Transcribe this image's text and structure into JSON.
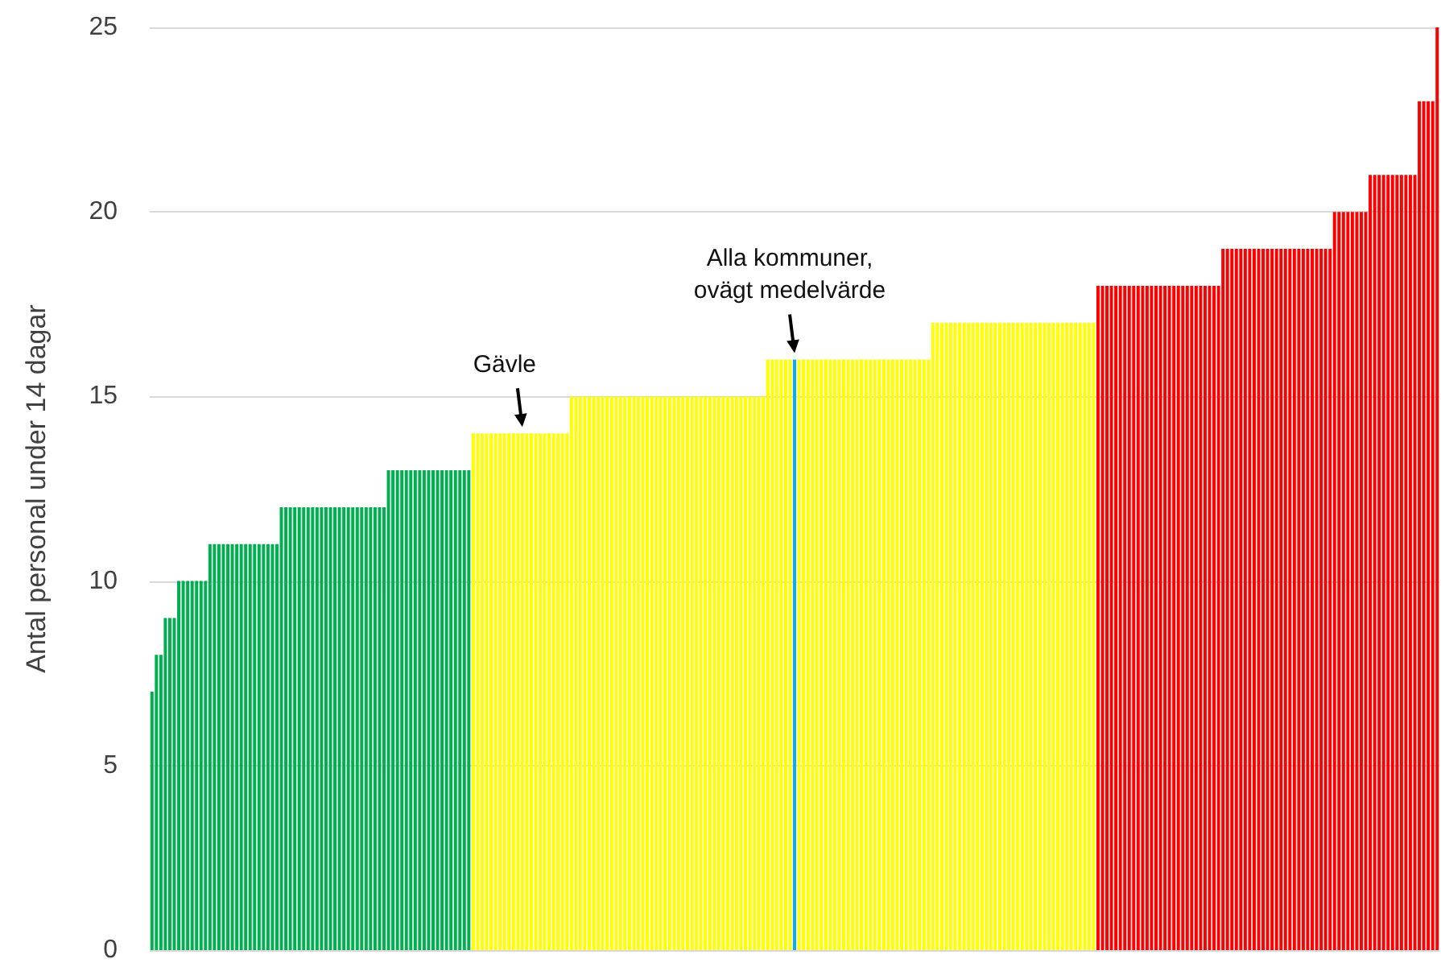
{
  "chart_data": {
    "type": "bar",
    "ylabel": "Antal personal under 14 dagar",
    "categories": [
      null,
      null,
      null,
      null,
      null,
      null,
      null,
      null,
      null,
      null,
      null,
      null,
      null,
      null,
      null,
      null,
      null,
      null,
      null,
      null,
      null,
      null,
      null,
      null,
      null,
      null,
      null,
      null,
      null,
      null,
      null,
      null,
      null,
      null,
      null,
      null,
      null,
      null,
      null,
      null,
      null,
      null,
      null,
      null,
      null,
      null,
      null,
      null,
      null,
      null,
      null,
      null,
      null,
      null,
      null,
      null,
      null,
      null,
      null,
      null,
      null,
      null,
      null,
      null,
      null,
      null,
      null,
      null,
      null,
      null,
      null,
      null,
      null,
      null,
      null,
      null,
      null,
      null,
      null,
      null,
      null,
      null,
      null,
      null,
      null,
      null,
      null,
      null,
      null,
      null,
      null,
      null,
      null,
      null,
      null,
      null,
      null,
      null,
      null,
      null,
      null,
      null,
      null,
      null,
      null,
      null,
      null,
      null,
      null,
      null,
      null,
      null,
      null,
      null,
      null,
      null,
      null,
      null,
      null,
      null,
      null,
      null,
      null,
      null,
      null,
      null,
      null,
      null,
      null,
      null,
      null,
      null,
      null,
      null,
      null,
      null,
      null,
      null,
      null,
      null,
      null,
      null,
      null,
      null,
      null,
      null,
      null,
      null,
      null,
      null,
      null,
      null,
      null,
      null,
      null,
      null,
      null,
      null,
      null,
      null,
      null,
      null,
      null,
      null,
      null,
      null,
      null,
      null,
      null,
      null,
      null,
      null,
      null,
      null,
      null,
      null,
      null,
      null,
      null,
      null,
      null,
      null,
      null,
      null,
      null,
      null,
      null,
      null,
      null,
      null,
      null,
      null,
      null,
      null,
      null,
      null,
      null,
      null,
      null,
      null,
      null,
      null,
      null,
      null,
      null,
      null,
      null,
      null,
      null,
      null,
      null,
      null,
      null,
      null,
      null,
      null,
      null,
      null,
      null,
      null,
      null,
      null,
      null,
      null,
      null,
      null,
      null,
      null,
      null,
      null,
      null,
      null,
      null,
      null,
      null,
      null,
      null,
      null,
      null,
      null,
      null,
      null,
      null,
      null,
      null,
      null,
      null,
      null,
      null,
      null,
      null,
      null,
      null,
      null,
      null,
      null,
      null,
      null,
      null,
      null,
      null,
      null,
      null,
      null,
      null,
      null,
      null,
      null,
      null,
      null,
      null,
      null,
      null,
      null,
      null,
      null,
      null,
      null,
      null,
      null,
      null,
      null,
      null,
      null,
      null,
      null,
      null,
      null,
      null
    ],
    "values": [
      7,
      8,
      8,
      9,
      9,
      9,
      10,
      10,
      10,
      10,
      10,
      10,
      10,
      11,
      11,
      11,
      11,
      11,
      11,
      11,
      11,
      11,
      11,
      11,
      11,
      11,
      11,
      11,
      11,
      12,
      12,
      12,
      12,
      12,
      12,
      12,
      12,
      12,
      12,
      12,
      12,
      12,
      12,
      12,
      12,
      12,
      12,
      12,
      12,
      12,
      12,
      12,
      12,
      13,
      13,
      13,
      13,
      13,
      13,
      13,
      13,
      13,
      13,
      13,
      13,
      13,
      13,
      13,
      13,
      13,
      13,
      13,
      14,
      14,
      14,
      14,
      14,
      14,
      14,
      14,
      14,
      14,
      14,
      14,
      14,
      14,
      14,
      14,
      14,
      14,
      14,
      14,
      14,
      14,
      15,
      15,
      15,
      15,
      15,
      15,
      15,
      15,
      15,
      15,
      15,
      15,
      15,
      15,
      15,
      15,
      15,
      15,
      15,
      15,
      15,
      15,
      15,
      15,
      15,
      15,
      15,
      15,
      15,
      15,
      15,
      15,
      15,
      15,
      15,
      15,
      15,
      15,
      15,
      15,
      15,
      15,
      15,
      15,
      16,
      16,
      16,
      16,
      16,
      16,
      16,
      16,
      16,
      16,
      16,
      16,
      16,
      16,
      16,
      16,
      16,
      16,
      16,
      16,
      16,
      16,
      16,
      16,
      16,
      16,
      16,
      16,
      16,
      16,
      16,
      16,
      16,
      16,
      16,
      16,
      16,
      17,
      17,
      17,
      17,
      17,
      17,
      17,
      17,
      17,
      17,
      17,
      17,
      17,
      17,
      17,
      17,
      17,
      17,
      17,
      17,
      17,
      17,
      17,
      17,
      17,
      17,
      17,
      17,
      17,
      17,
      17,
      17,
      17,
      17,
      17,
      17,
      17,
      18,
      18,
      18,
      18,
      18,
      18,
      18,
      18,
      18,
      18,
      18,
      18,
      18,
      18,
      18,
      18,
      18,
      18,
      18,
      18,
      18,
      18,
      18,
      18,
      18,
      18,
      18,
      18,
      19,
      19,
      19,
      19,
      19,
      19,
      19,
      19,
      19,
      19,
      19,
      19,
      19,
      19,
      19,
      19,
      19,
      19,
      19,
      19,
      19,
      19,
      19,
      19,
      19,
      20,
      20,
      20,
      20,
      20,
      20,
      20,
      20,
      21,
      21,
      21,
      21,
      21,
      21,
      21,
      21,
      21,
      21,
      21,
      23,
      23,
      23,
      23,
      25
    ],
    "colors": [
      "#00b050",
      "#00b050",
      "#00b050",
      "#00b050",
      "#00b050",
      "#00b050",
      "#00b050",
      "#00b050",
      "#00b050",
      "#00b050",
      "#00b050",
      "#00b050",
      "#00b050",
      "#00b050",
      "#00b050",
      "#00b050",
      "#00b050",
      "#00b050",
      "#00b050",
      "#00b050",
      "#00b050",
      "#00b050",
      "#00b050",
      "#00b050",
      "#00b050",
      "#00b050",
      "#00b050",
      "#00b050",
      "#00b050",
      "#00b050",
      "#00b050",
      "#00b050",
      "#00b050",
      "#00b050",
      "#00b050",
      "#00b050",
      "#00b050",
      "#00b050",
      "#00b050",
      "#00b050",
      "#00b050",
      "#00b050",
      "#00b050",
      "#00b050",
      "#00b050",
      "#00b050",
      "#00b050",
      "#00b050",
      "#00b050",
      "#00b050",
      "#00b050",
      "#00b050",
      "#00b050",
      "#00b050",
      "#00b050",
      "#00b050",
      "#00b050",
      "#00b050",
      "#00b050",
      "#00b050",
      "#00b050",
      "#00b050",
      "#00b050",
      "#00b050",
      "#00b050",
      "#00b050",
      "#00b050",
      "#00b050",
      "#00b050",
      "#00b050",
      "#00b050",
      "#00b050",
      "#ffff00",
      "#ffff00",
      "#ffff00",
      "#ffff00",
      "#ffff00",
      "#ffff00",
      "#ffff00",
      "#ffff00",
      "#ffff00",
      "#ffff00",
      "#ffff00",
      "#ffff00",
      "#ffff00",
      "#ffff00",
      "#ffff00",
      "#ffff00",
      "#ffff00",
      "#ffff00",
      "#ffff00",
      "#ffff00",
      "#ffff00",
      "#ffff00",
      "#ffff00",
      "#ffff00",
      "#ffff00",
      "#ffff00",
      "#ffff00",
      "#ffff00",
      "#ffff00",
      "#ffff00",
      "#ffff00",
      "#ffff00",
      "#ffff00",
      "#ffff00",
      "#ffff00",
      "#ffff00",
      "#ffff00",
      "#ffff00",
      "#ffff00",
      "#ffff00",
      "#ffff00",
      "#ffff00",
      "#ffff00",
      "#ffff00",
      "#ffff00",
      "#ffff00",
      "#ffff00",
      "#ffff00",
      "#ffff00",
      "#ffff00",
      "#ffff00",
      "#ffff00",
      "#ffff00",
      "#ffff00",
      "#ffff00",
      "#ffff00",
      "#ffff00",
      "#ffff00",
      "#ffff00",
      "#ffff00",
      "#ffff00",
      "#ffff00",
      "#ffff00",
      "#ffff00",
      "#ffff00",
      "#ffff00",
      "#ffff00",
      "#ffff00",
      "#ffff00",
      "#ffff00",
      "#ffff00",
      "#ffff00",
      "#00b0f0",
      "#ffff00",
      "#ffff00",
      "#ffff00",
      "#ffff00",
      "#ffff00",
      "#ffff00",
      "#ffff00",
      "#ffff00",
      "#ffff00",
      "#ffff00",
      "#ffff00",
      "#ffff00",
      "#ffff00",
      "#ffff00",
      "#ffff00",
      "#ffff00",
      "#ffff00",
      "#ffff00",
      "#ffff00",
      "#ffff00",
      "#ffff00",
      "#ffff00",
      "#ffff00",
      "#ffff00",
      "#ffff00",
      "#ffff00",
      "#ffff00",
      "#ffff00",
      "#ffff00",
      "#ffff00",
      "#ffff00",
      "#ffff00",
      "#ffff00",
      "#ffff00",
      "#ffff00",
      "#ffff00",
      "#ffff00",
      "#ffff00",
      "#ffff00",
      "#ffff00",
      "#ffff00",
      "#ffff00",
      "#ffff00",
      "#ffff00",
      "#ffff00",
      "#ffff00",
      "#ffff00",
      "#ffff00",
      "#ffff00",
      "#ffff00",
      "#ffff00",
      "#ffff00",
      "#ffff00",
      "#ffff00",
      "#ffff00",
      "#ffff00",
      "#ffff00",
      "#ffff00",
      "#ffff00",
      "#ffff00",
      "#ffff00",
      "#ffff00",
      "#ffff00",
      "#ffff00",
      "#ffff00",
      "#ffff00",
      "#ffff00",
      "#ff0000",
      "#ff0000",
      "#ff0000",
      "#ff0000",
      "#ff0000",
      "#ff0000",
      "#ff0000",
      "#ff0000",
      "#ff0000",
      "#ff0000",
      "#ff0000",
      "#ff0000",
      "#ff0000",
      "#ff0000",
      "#ff0000",
      "#ff0000",
      "#ff0000",
      "#ff0000",
      "#ff0000",
      "#ff0000",
      "#ff0000",
      "#ff0000",
      "#ff0000",
      "#ff0000",
      "#ff0000",
      "#ff0000",
      "#ff0000",
      "#ff0000",
      "#ff0000",
      "#ff0000",
      "#ff0000",
      "#ff0000",
      "#ff0000",
      "#ff0000",
      "#ff0000",
      "#ff0000",
      "#ff0000",
      "#ff0000",
      "#ff0000",
      "#ff0000",
      "#ff0000",
      "#ff0000",
      "#ff0000",
      "#ff0000",
      "#ff0000",
      "#ff0000",
      "#ff0000",
      "#ff0000",
      "#ff0000",
      "#ff0000",
      "#ff0000",
      "#ff0000",
      "#ff0000",
      "#ff0000",
      "#ff0000",
      "#ff0000",
      "#ff0000",
      "#ff0000",
      "#ff0000",
      "#ff0000",
      "#ff0000",
      "#ff0000",
      "#ff0000",
      "#ff0000",
      "#ff0000",
      "#ff0000",
      "#ff0000",
      "#ff0000",
      "#ff0000",
      "#ff0000",
      "#ff0000",
      "#ff0000",
      "#ff0000",
      "#ff0000",
      "#ff0000",
      "#ff0000",
      "#ff0000"
    ],
    "annotations": [
      {
        "text": "Gävle",
        "y": 14
      },
      {
        "text": "Alla kommuner,\novägt medelvärde",
        "y": 16
      }
    ],
    "ylim": [
      0,
      25
    ],
    "yticks": [
      0,
      5,
      10,
      15,
      20,
      25
    ],
    "grid": "y"
  }
}
